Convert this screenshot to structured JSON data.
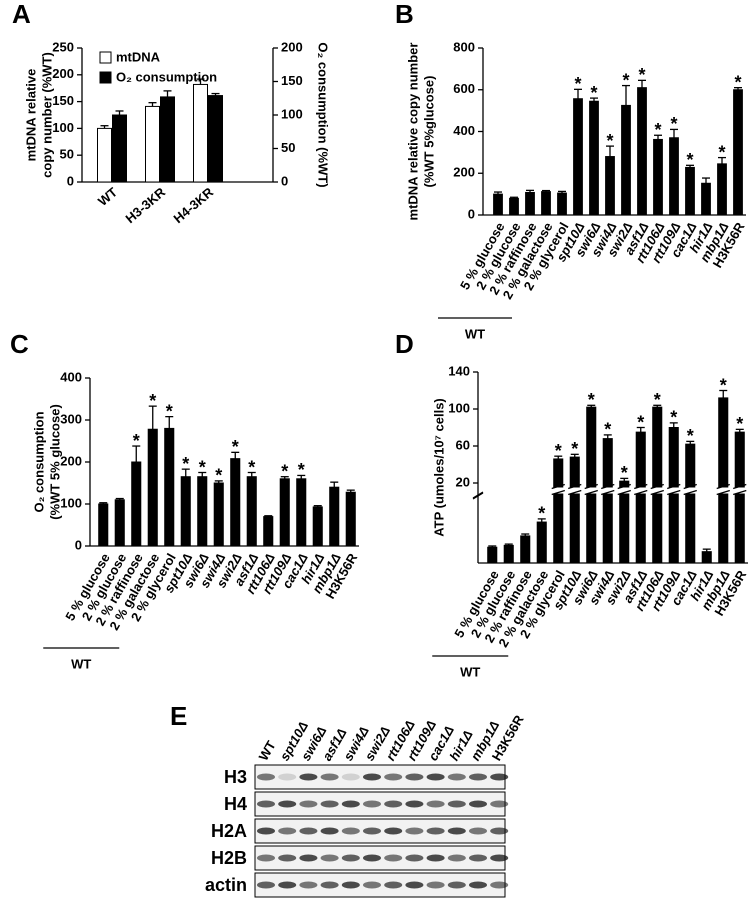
{
  "chart_data": [
    {
      "type": "bar",
      "panel": "A",
      "ylabel": [
        "mtDNA relative",
        "copy number (%WT)"
      ],
      "y2label": "O₂ consumption (%WT)",
      "categories": [
        "WT",
        "H3-3KR",
        "H4-3KR"
      ],
      "series": [
        {
          "name": "mtDNA",
          "color": "#ffffff",
          "values": [
            100,
            141,
            182
          ],
          "errors": [
            5,
            7,
            10
          ]
        },
        {
          "name": "O₂ consumption",
          "color": "#000000",
          "axis": "y2",
          "values": [
            100,
            127,
            129
          ],
          "errors": [
            6,
            9,
            3
          ]
        }
      ],
      "ylim": [
        0,
        250
      ],
      "yticks": [
        0,
        50,
        100,
        150,
        200,
        250
      ],
      "y2lim": [
        0,
        200
      ],
      "y2ticks": [
        0,
        50,
        100,
        150,
        200
      ],
      "legend": "upper left"
    },
    {
      "type": "bar",
      "panel": "B",
      "color": "#000000",
      "ylabel": [
        "mtDNA relative copy number",
        "(%WT 5%glucose)"
      ],
      "categories": [
        "5 % glucose",
        "2 % glucose",
        "2 % raffinose",
        "2 % galactose",
        "2 % glycerol",
        "spt10Δ",
        "swi6Δ",
        "swi4Δ",
        "swi2Δ",
        "asf1Δ",
        "rtt106Δ",
        "rtt109Δ",
        "cac1Δ",
        "hir1Δ",
        "mbp1Δ",
        "H3K56R"
      ],
      "values": [
        100,
        80,
        108,
        112,
        105,
        557,
        545,
        280,
        525,
        610,
        362,
        370,
        228,
        152,
        245,
        600
      ],
      "errors": [
        10,
        5,
        10,
        5,
        8,
        45,
        15,
        50,
        95,
        35,
        20,
        40,
        10,
        25,
        30,
        10
      ],
      "significance": [
        null,
        null,
        null,
        null,
        null,
        "*",
        "*",
        "*",
        "*",
        "*",
        "*",
        "*",
        "*",
        null,
        "*",
        "*"
      ],
      "group": {
        "label": "WT",
        "first": 0,
        "last": 4
      },
      "ylim": [
        0,
        800
      ],
      "yticks": [
        0,
        200,
        400,
        600,
        800
      ]
    },
    {
      "type": "bar",
      "panel": "C",
      "color": "#000000",
      "ylabel": [
        "O₂ consumption",
        "(%WT 5% glucose)"
      ],
      "categories": [
        "5 % glucose",
        "2 % glucose",
        "2 % raffinose",
        "2 % galactose",
        "2 % glycerol",
        "spt10Δ",
        "swi6Δ",
        "swi4Δ",
        "swi2Δ",
        "asf1Δ",
        "rtt106Δ",
        "rtt109Δ",
        "cac1Δ",
        "hir1Δ",
        "mbp1Δ",
        "H3K56R"
      ],
      "values": [
        100,
        110,
        200,
        278,
        280,
        165,
        165,
        150,
        208,
        165,
        70,
        160,
        160,
        93,
        140,
        128
      ],
      "errors": [
        3,
        3,
        38,
        55,
        28,
        18,
        10,
        5,
        15,
        10,
        2,
        5,
        8,
        3,
        12,
        5
      ],
      "significance": [
        null,
        null,
        "*",
        "*",
        "*",
        "*",
        "*",
        "*",
        "*",
        "*",
        null,
        "*",
        "*",
        null,
        null,
        null
      ],
      "group": {
        "label": "WT",
        "first": 0,
        "last": 4
      },
      "ylim": [
        0,
        400
      ],
      "yticks": [
        0,
        100,
        200,
        300,
        400
      ]
    },
    {
      "type": "bar",
      "panel": "D",
      "color": "#000000",
      "ylabel": [
        "ATP (umoles/10⁷ cells)"
      ],
      "categories": [
        "5 % glucose",
        "2 % glucose",
        "2 % raffinose",
        "2 % galactose",
        "2 % glycerol",
        "spt10Δ",
        "swi6Δ",
        "swi4Δ",
        "swi2Δ",
        "asf1Δ",
        "rtt106Δ",
        "rtt109Δ",
        "cac1Δ",
        "hir1Δ",
        "mbp1Δ",
        "H3K56R"
      ],
      "values": [
        2.5,
        2.8,
        4.3,
        6.5,
        46,
        48,
        102,
        68,
        22,
        75,
        102,
        80,
        62,
        1.8,
        112,
        75
      ],
      "errors": [
        0.2,
        0.2,
        0.3,
        0.5,
        3,
        3,
        2,
        4,
        3,
        5,
        2,
        5,
        3,
        0.4,
        8,
        3
      ],
      "significance": [
        null,
        null,
        null,
        "*",
        "*",
        "*",
        "*",
        "*",
        "*",
        "*",
        "*",
        "*",
        "*",
        null,
        "*",
        "*"
      ],
      "group": {
        "label": "WT",
        "first": 0,
        "last": 4
      },
      "ylim_lower": [
        0,
        10
      ],
      "ylim": [
        20,
        140
      ],
      "yticks": [
        20,
        60,
        100,
        140
      ]
    }
  ],
  "blot": {
    "panel": "E",
    "lanes": [
      "WT",
      "spt10Δ",
      "swi6Δ",
      "asf1Δ",
      "swi4Δ",
      "swi2Δ",
      "rtt106Δ",
      "rtt109Δ",
      "cac1Δ",
      "hir1Δ",
      "mbp1Δ",
      "H3K56R"
    ],
    "rows": [
      "H3",
      "H4",
      "H2A",
      "H2B",
      "actin"
    ]
  }
}
